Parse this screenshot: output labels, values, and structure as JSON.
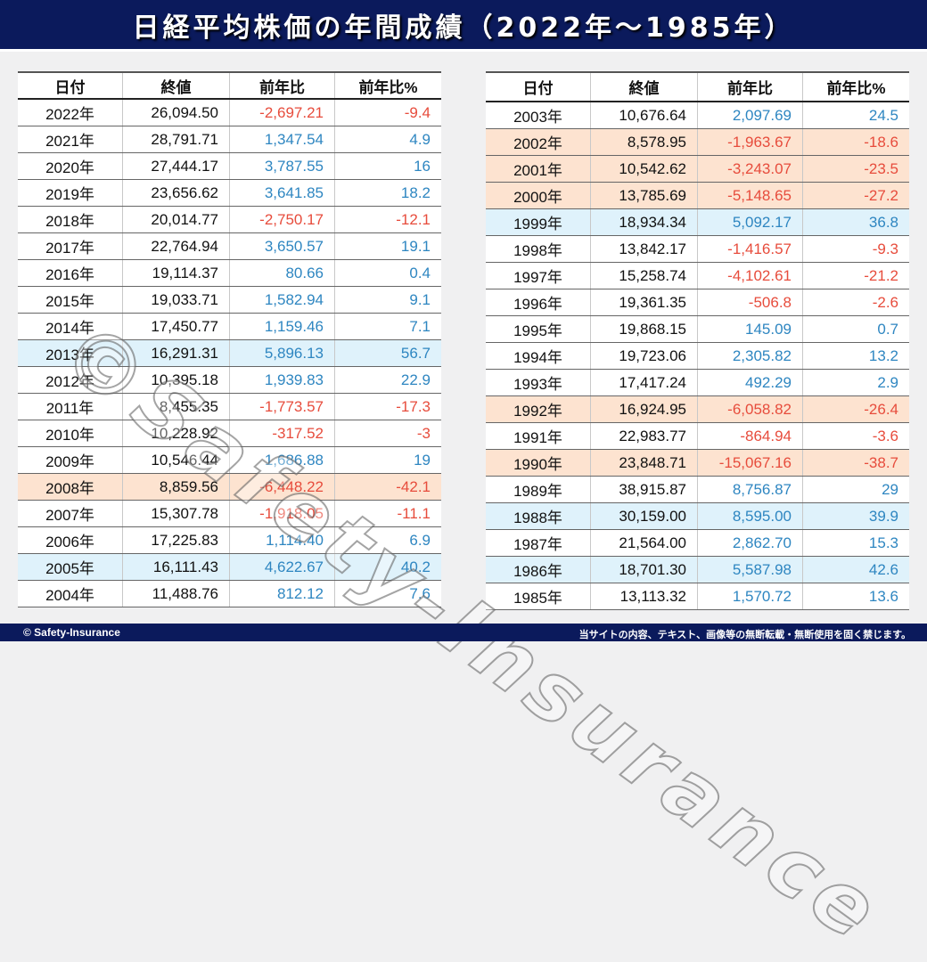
{
  "title": "日経平均株価の年間成績（2022年～1985年）",
  "footer": {
    "copyright": "© Safety-Insurance",
    "notice": "当サイトの内容、テキスト、画像等の無断転載・無断使用を固く禁じます。"
  },
  "watermark": "©Safety-Insurance",
  "colors": {
    "positive": "#2e86c1",
    "negative": "#e74c3c",
    "highlight_up": "#dff2fb",
    "highlight_down": "#fde3d0",
    "title_bg": "#0b1a5c"
  },
  "headers": {
    "date": "日付",
    "close": "終値",
    "diff": "前年比",
    "pct": "前年比%"
  },
  "left_rows": [
    {
      "date": "2022年",
      "close": "26,094.50",
      "diff": "-2,697.21",
      "pct": "-9.4",
      "hl": ""
    },
    {
      "date": "2021年",
      "close": "28,791.71",
      "diff": "1,347.54",
      "pct": "4.9",
      "hl": ""
    },
    {
      "date": "2020年",
      "close": "27,444.17",
      "diff": "3,787.55",
      "pct": "16",
      "hl": ""
    },
    {
      "date": "2019年",
      "close": "23,656.62",
      "diff": "3,641.85",
      "pct": "18.2",
      "hl": ""
    },
    {
      "date": "2018年",
      "close": "20,014.77",
      "diff": "-2,750.17",
      "pct": "-12.1",
      "hl": ""
    },
    {
      "date": "2017年",
      "close": "22,764.94",
      "diff": "3,650.57",
      "pct": "19.1",
      "hl": ""
    },
    {
      "date": "2016年",
      "close": "19,114.37",
      "diff": "80.66",
      "pct": "0.4",
      "hl": ""
    },
    {
      "date": "2015年",
      "close": "19,033.71",
      "diff": "1,582.94",
      "pct": "9.1",
      "hl": ""
    },
    {
      "date": "2014年",
      "close": "17,450.77",
      "diff": "1,159.46",
      "pct": "7.1",
      "hl": ""
    },
    {
      "date": "2013年",
      "close": "16,291.31",
      "diff": "5,896.13",
      "pct": "56.7",
      "hl": "blue"
    },
    {
      "date": "2012年",
      "close": "10,395.18",
      "diff": "1,939.83",
      "pct": "22.9",
      "hl": ""
    },
    {
      "date": "2011年",
      "close": "8,455.35",
      "diff": "-1,773.57",
      "pct": "-17.3",
      "hl": ""
    },
    {
      "date": "2010年",
      "close": "10,228.92",
      "diff": "-317.52",
      "pct": "-3",
      "hl": ""
    },
    {
      "date": "2009年",
      "close": "10,546.44",
      "diff": "1,686.88",
      "pct": "19",
      "hl": ""
    },
    {
      "date": "2008年",
      "close": "8,859.56",
      "diff": "-6,448.22",
      "pct": "-42.1",
      "hl": "orange"
    },
    {
      "date": "2007年",
      "close": "15,307.78",
      "diff": "-1,918.05",
      "pct": "-11.1",
      "hl": ""
    },
    {
      "date": "2006年",
      "close": "17,225.83",
      "diff": "1,114.40",
      "pct": "6.9",
      "hl": ""
    },
    {
      "date": "2005年",
      "close": "16,111.43",
      "diff": "4,622.67",
      "pct": "40.2",
      "hl": "blue"
    },
    {
      "date": "2004年",
      "close": "11,488.76",
      "diff": "812.12",
      "pct": "7.6",
      "hl": ""
    }
  ],
  "right_rows": [
    {
      "date": "2003年",
      "close": "10,676.64",
      "diff": "2,097.69",
      "pct": "24.5",
      "hl": ""
    },
    {
      "date": "2002年",
      "close": "8,578.95",
      "diff": "-1,963.67",
      "pct": "-18.6",
      "hl": "orange"
    },
    {
      "date": "2001年",
      "close": "10,542.62",
      "diff": "-3,243.07",
      "pct": "-23.5",
      "hl": "orange"
    },
    {
      "date": "2000年",
      "close": "13,785.69",
      "diff": "-5,148.65",
      "pct": "-27.2",
      "hl": "orange"
    },
    {
      "date": "1999年",
      "close": "18,934.34",
      "diff": "5,092.17",
      "pct": "36.8",
      "hl": "blue"
    },
    {
      "date": "1998年",
      "close": "13,842.17",
      "diff": "-1,416.57",
      "pct": "-9.3",
      "hl": ""
    },
    {
      "date": "1997年",
      "close": "15,258.74",
      "diff": "-4,102.61",
      "pct": "-21.2",
      "hl": ""
    },
    {
      "date": "1996年",
      "close": "19,361.35",
      "diff": "-506.8",
      "pct": "-2.6",
      "hl": ""
    },
    {
      "date": "1995年",
      "close": "19,868.15",
      "diff": "145.09",
      "pct": "0.7",
      "hl": ""
    },
    {
      "date": "1994年",
      "close": "19,723.06",
      "diff": "2,305.82",
      "pct": "13.2",
      "hl": ""
    },
    {
      "date": "1993年",
      "close": "17,417.24",
      "diff": "492.29",
      "pct": "2.9",
      "hl": ""
    },
    {
      "date": "1992年",
      "close": "16,924.95",
      "diff": "-6,058.82",
      "pct": "-26.4",
      "hl": "orange"
    },
    {
      "date": "1991年",
      "close": "22,983.77",
      "diff": "-864.94",
      "pct": "-3.6",
      "hl": ""
    },
    {
      "date": "1990年",
      "close": "23,848.71",
      "diff": "-15,067.16",
      "pct": "-38.7",
      "hl": "orange"
    },
    {
      "date": "1989年",
      "close": "38,915.87",
      "diff": "8,756.87",
      "pct": "29",
      "hl": ""
    },
    {
      "date": "1988年",
      "close": "30,159.00",
      "diff": "8,595.00",
      "pct": "39.9",
      "hl": "blue"
    },
    {
      "date": "1987年",
      "close": "21,564.00",
      "diff": "2,862.70",
      "pct": "15.3",
      "hl": ""
    },
    {
      "date": "1986年",
      "close": "18,701.30",
      "diff": "5,587.98",
      "pct": "42.6",
      "hl": "blue"
    },
    {
      "date": "1985年",
      "close": "13,113.32",
      "diff": "1,570.72",
      "pct": "13.6",
      "hl": ""
    }
  ]
}
